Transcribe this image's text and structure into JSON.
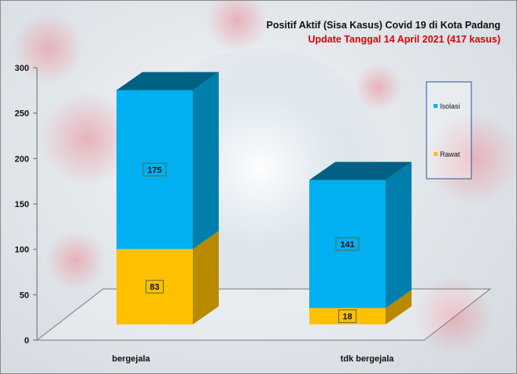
{
  "chart_data": {
    "type": "bar",
    "stacked": true,
    "three_d": true,
    "title": "Positif Aktif  (Sisa Kasus) Covid 19 di Kota Padang",
    "subtitle": "Update Tanggal 14 April 2021  (417 kasus)",
    "categories": [
      "bergejala",
      "tdk bergejala"
    ],
    "series": [
      {
        "name": "Rawat",
        "values": [
          83,
          18
        ],
        "color": "#ffc000"
      },
      {
        "name": "Isolasi",
        "values": [
          175,
          141
        ],
        "color": "#00b0f0"
      }
    ],
    "ylim": [
      0,
      300
    ],
    "yticks": [
      0,
      50,
      100,
      150,
      200,
      250,
      300
    ],
    "xlabel": "",
    "ylabel": "",
    "legend_position": "right",
    "legend_order": [
      "Isolasi",
      "Rawat"
    ],
    "gridlines": false
  }
}
